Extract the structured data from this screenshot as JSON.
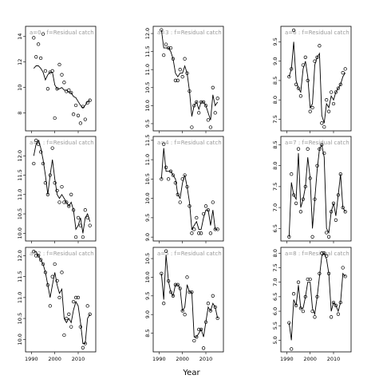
{
  "xlabel": "Year",
  "chart_data": [
    {
      "type": "scatter",
      "title": "a=0  :  f=Residual catch",
      "x_ticks": [
        1990,
        2000,
        2010
      ],
      "y_ticks": [
        8,
        10,
        12,
        14
      ],
      "x": [
        1991,
        1992,
        1993,
        1994,
        1995,
        1996,
        1997,
        1998,
        1999,
        2000,
        2001,
        2002,
        2003,
        2004,
        2005,
        2006,
        2007,
        2008,
        2009,
        2010,
        2011,
        2012,
        2013,
        2014,
        2015
      ],
      "values": [
        13.9,
        12.4,
        13.4,
        12.3,
        14.2,
        11.3,
        9.9,
        11.2,
        11.3,
        7.6,
        9.9,
        11.8,
        11.0,
        10.4,
        9.7,
        9.8,
        9.6,
        7.9,
        8.6,
        7.8,
        7.2,
        8.5,
        7.5,
        8.8,
        9.0
      ],
      "fit": [
        11.5,
        11.7,
        11.7,
        11.5,
        11.2,
        10.6,
        11.0,
        11.2,
        11.2,
        10.2,
        9.9,
        9.9,
        10.0,
        9.8,
        9.8,
        9.6,
        9.6,
        9.3,
        9.2,
        8.9,
        8.6,
        8.4,
        8.6,
        8.9,
        9.0
      ],
      "ylim": [
        6.6,
        14.8
      ]
    },
    {
      "type": "scatter",
      "title": "a=1  :  f=Residual catch",
      "x_ticks": [
        1990,
        2000,
        2010
      ],
      "y_ticks": [
        10.0,
        10.5,
        11.0,
        11.5,
        12.0
      ],
      "x": [
        1991,
        1992,
        1993,
        1994,
        1995,
        1996,
        1997,
        1998,
        1999,
        2000,
        2001,
        2002,
        2003,
        2004,
        2005,
        2006,
        2007,
        2008,
        2009,
        2010,
        2011,
        2012,
        2013,
        2014,
        2015
      ],
      "values": [
        11.8,
        12.4,
        12.3,
        12.1,
        11.8,
        11.3,
        11.0,
        11.5,
        12.2,
        11.3,
        11.1,
        10.8,
        11.2,
        10.8,
        10.8,
        10.7,
        11.0,
        10.6,
        9.9,
        10.4,
        10.2,
        9.9,
        10.6,
        10.4,
        10.2
      ],
      "fit": [
        12.0,
        12.3,
        12.4,
        12.2,
        11.9,
        11.5,
        11.0,
        11.5,
        11.9,
        11.4,
        11.0,
        10.9,
        11.0,
        10.9,
        10.8,
        10.7,
        10.8,
        10.6,
        10.1,
        10.2,
        10.4,
        10.0,
        10.4,
        10.5,
        10.3
      ],
      "ylim": [
        9.8,
        12.5
      ]
    },
    {
      "type": "scatter",
      "title": "a=2  :  f=Residual catch",
      "x_ticks": [
        1990,
        2000,
        2010
      ],
      "y_ticks": [
        10.0,
        10.5,
        11.0,
        11.5,
        12.0
      ],
      "x": [
        1991,
        1992,
        1993,
        1994,
        1995,
        1996,
        1997,
        1998,
        1999,
        2000,
        2001,
        2002,
        2003,
        2004,
        2005,
        2006,
        2007,
        2008,
        2009,
        2010,
        2011,
        2012,
        2013,
        2014,
        2015
      ],
      "values": [
        12.1,
        12.0,
        12.0,
        11.9,
        11.8,
        11.6,
        11.3,
        10.8,
        11.5,
        11.8,
        11.4,
        11.0,
        11.6,
        10.1,
        10.5,
        10.6,
        10.3,
        10.9,
        11.0,
        11.0,
        10.3,
        9.8,
        9.9,
        10.8,
        10.6
      ],
      "fit": [
        12.1,
        12.1,
        12.0,
        11.9,
        11.8,
        11.6,
        11.3,
        11.0,
        11.3,
        11.6,
        11.3,
        11.1,
        11.2,
        10.5,
        10.4,
        10.5,
        10.4,
        10.7,
        10.9,
        10.8,
        10.4,
        9.9,
        9.9,
        10.5,
        10.6
      ],
      "ylim": [
        9.7,
        12.2
      ]
    },
    {
      "type": "scatter",
      "title": "a=3  :  f=Residual catch",
      "x_ticks": [
        1990,
        2000,
        2010
      ],
      "y_ticks": [
        9.5,
        10.0,
        10.5,
        11.0,
        11.5,
        12.0
      ],
      "x": [
        1991,
        1992,
        1993,
        1994,
        1995,
        1996,
        1997,
        1998,
        1999,
        2000,
        2001,
        2002,
        2003,
        2004,
        2005,
        2006,
        2007,
        2008,
        2009,
        2010,
        2011,
        2012,
        2013,
        2014,
        2015
      ],
      "values": [
        12.1,
        11.4,
        11.7,
        11.6,
        11.6,
        11.3,
        10.7,
        10.7,
        11.0,
        10.8,
        11.3,
        10.9,
        10.4,
        9.4,
        10.0,
        10.1,
        9.8,
        10.1,
        10.1,
        10.0,
        9.6,
        9.4,
        10.5,
        9.8,
        10.2
      ],
      "fit": [
        12.1,
        11.6,
        11.6,
        11.6,
        11.5,
        11.3,
        10.9,
        10.8,
        10.9,
        10.9,
        11.1,
        10.9,
        10.4,
        9.7,
        10.0,
        10.1,
        9.9,
        10.1,
        10.1,
        10.0,
        9.8,
        9.6,
        10.3,
        10.0,
        10.1
      ],
      "ylim": [
        9.3,
        12.2
      ]
    },
    {
      "type": "scatter",
      "title": "a=4  :  f=Residual catch",
      "x_ticks": [
        1990,
        2000,
        2010
      ],
      "y_ticks": [
        9.0,
        9.5,
        10.0,
        10.5,
        11.0,
        11.5
      ],
      "x": [
        1991,
        1992,
        1993,
        1994,
        1995,
        1996,
        1997,
        1998,
        1999,
        2000,
        2001,
        2002,
        2003,
        2004,
        2005,
        2006,
        2007,
        2008,
        2009,
        2010,
        2011,
        2012,
        2013,
        2014,
        2015
      ],
      "values": [
        10.5,
        11.4,
        10.8,
        10.5,
        10.7,
        10.6,
        10.4,
        10.1,
        9.9,
        10.5,
        10.6,
        10.3,
        9.8,
        9.1,
        9.2,
        9.5,
        9.1,
        9.1,
        9.6,
        9.8,
        9.7,
        9.1,
        9.9,
        9.2,
        9.2
      ],
      "fit": [
        10.5,
        11.3,
        10.7,
        10.7,
        10.7,
        10.6,
        10.5,
        10.1,
        10.0,
        10.4,
        10.6,
        10.3,
        9.9,
        9.2,
        9.3,
        9.4,
        9.2,
        9.2,
        9.5,
        9.7,
        9.7,
        9.3,
        9.7,
        9.2,
        9.2
      ],
      "ylim": [
        8.9,
        11.6
      ]
    },
    {
      "type": "scatter",
      "title": "a=5  :  f=Residual catch",
      "x_ticks": [
        1990,
        2000,
        2010
      ],
      "y_ticks": [
        8.5,
        9.0,
        9.5,
        10.0,
        10.5
      ],
      "x": [
        1991,
        1992,
        1993,
        1994,
        1995,
        1996,
        1997,
        1998,
        1999,
        2000,
        2001,
        2002,
        2003,
        2004,
        2005,
        2006,
        2007,
        2008,
        2009,
        2010,
        2011,
        2012,
        2013,
        2014,
        2015
      ],
      "values": [
        10.1,
        9.3,
        10.7,
        9.9,
        9.6,
        9.5,
        9.8,
        9.8,
        9.7,
        9.1,
        9.0,
        10.0,
        9.6,
        9.6,
        8.3,
        8.4,
        8.6,
        8.6,
        8.1,
        8.8,
        9.3,
        9.1,
        9.5,
        9.2,
        8.9
      ],
      "fit": [
        10.1,
        9.4,
        10.6,
        9.9,
        9.6,
        9.5,
        9.8,
        9.8,
        9.7,
        9.1,
        9.2,
        9.8,
        9.6,
        9.6,
        8.4,
        8.4,
        8.5,
        8.6,
        8.4,
        8.8,
        9.2,
        9.1,
        9.3,
        9.2,
        8.9
      ],
      "ylim": [
        8.0,
        10.8
      ]
    },
    {
      "type": "scatter",
      "title": "a=6  :  f=Residual catch",
      "x_ticks": [
        1990,
        2000,
        2010
      ],
      "y_ticks": [
        7.5,
        8.0,
        8.5,
        9.0,
        9.5
      ],
      "x": [
        1991,
        1992,
        1993,
        1994,
        1995,
        1996,
        1997,
        1998,
        1999,
        2000,
        2001,
        2002,
        2003,
        2004,
        2005,
        2006,
        2007,
        2008,
        2009,
        2010,
        2011,
        2012,
        2013,
        2014,
        2015
      ],
      "values": [
        8.6,
        8.8,
        9.8,
        8.4,
        8.3,
        8.1,
        8.9,
        9.1,
        8.5,
        7.7,
        7.8,
        9.0,
        9.1,
        9.4,
        7.4,
        7.3,
        8.0,
        7.7,
        8.2,
        7.9,
        8.2,
        8.3,
        8.4,
        8.7,
        8.8
      ],
      "fit": [
        8.6,
        8.8,
        9.5,
        8.5,
        8.3,
        8.2,
        8.8,
        9.0,
        8.6,
        7.8,
        7.9,
        8.9,
        9.1,
        9.2,
        7.6,
        7.4,
        7.9,
        7.8,
        8.1,
        8.0,
        8.2,
        8.3,
        8.4,
        8.6,
        8.7
      ],
      "ylim": [
        7.2,
        9.9
      ]
    },
    {
      "type": "scatter",
      "title": "a=7  :  f=Residual catch",
      "x_ticks": [
        1990,
        2000,
        2010
      ],
      "y_ticks": [
        6.5,
        7.0,
        7.5,
        8.0,
        8.5
      ],
      "x": [
        1991,
        1992,
        1993,
        1994,
        1995,
        1996,
        1997,
        1998,
        1999,
        2000,
        2001,
        2002,
        2003,
        2004,
        2005,
        2006,
        2007,
        2008,
        2009,
        2010,
        2011,
        2012,
        2013,
        2014,
        2015
      ],
      "values": [
        6.3,
        7.8,
        7.3,
        7.1,
        8.4,
        6.9,
        7.2,
        7.5,
        8.4,
        7.7,
        6.3,
        7.2,
        8.0,
        8.4,
        8.5,
        8.3,
        6.4,
        6.3,
        6.9,
        7.1,
        6.7,
        7.3,
        7.8,
        7.0,
        6.9
      ],
      "fit": [
        6.3,
        7.6,
        7.3,
        7.2,
        8.3,
        7.0,
        7.2,
        7.5,
        8.2,
        7.7,
        6.5,
        7.2,
        7.9,
        8.4,
        8.5,
        8.2,
        6.5,
        6.4,
        6.9,
        7.1,
        6.8,
        7.3,
        7.8,
        7.0,
        6.9
      ],
      "ylim": [
        6.2,
        8.7
      ]
    },
    {
      "type": "scatter",
      "title": "a=8  :  f=Residual catch",
      "x_ticks": [
        1990,
        2000,
        2010
      ],
      "y_ticks": [
        5.0,
        5.5,
        6.0,
        6.5,
        7.0,
        7.5,
        8.0
      ],
      "x": [
        1991,
        1992,
        1993,
        1994,
        1995,
        1996,
        1997,
        1998,
        1999,
        2000,
        2001,
        2002,
        2003,
        2004,
        2005,
        2006,
        2007,
        2008,
        2009,
        2010,
        2011,
        2012,
        2013,
        2014,
        2015
      ],
      "values": [
        5.6,
        4.7,
        6.6,
        6.2,
        7.0,
        6.1,
        6.0,
        6.5,
        7.1,
        7.1,
        6.0,
        5.8,
        6.5,
        7.3,
        8.0,
        8.0,
        7.9,
        7.3,
        5.8,
        6.3,
        6.2,
        5.9,
        6.3,
        7.5,
        7.2
      ],
      "fit": [
        5.6,
        5.0,
        6.4,
        6.2,
        6.9,
        6.1,
        6.1,
        6.5,
        7.0,
        7.0,
        6.1,
        5.9,
        6.5,
        7.2,
        7.9,
        8.0,
        7.8,
        7.3,
        6.0,
        6.3,
        6.2,
        6.0,
        6.3,
        7.3,
        7.2
      ],
      "ylim": [
        4.6,
        8.2
      ]
    }
  ]
}
